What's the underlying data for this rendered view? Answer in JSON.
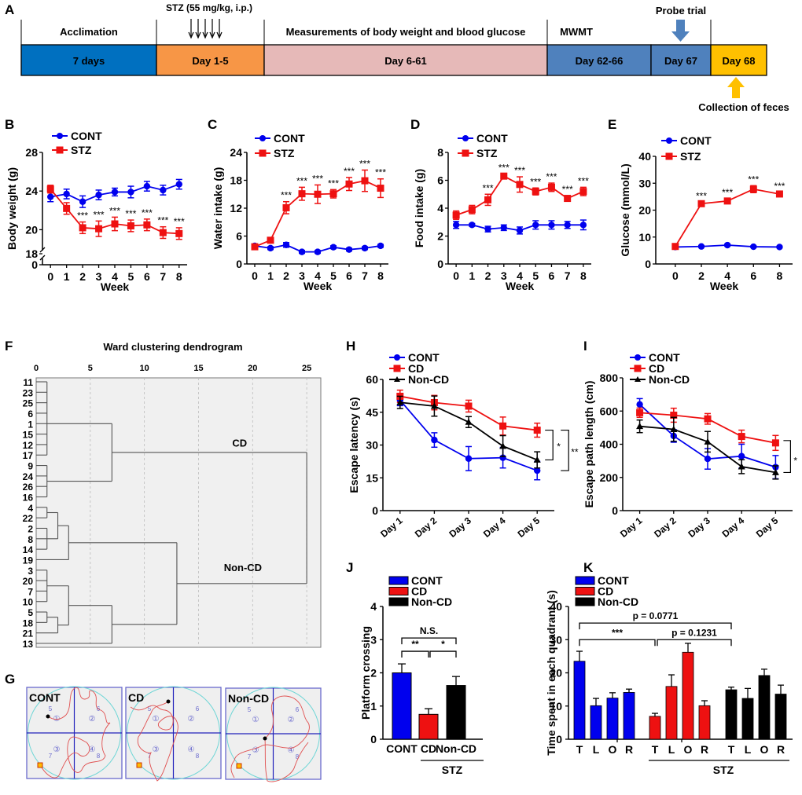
{
  "colors": {
    "cont": "#0000ee",
    "stz": "#ee1111",
    "noncd": "#000000",
    "timeline": {
      "acclimation": "#0070c0",
      "stz": "#f79646",
      "measure": "#e6b9b8",
      "mwmt": "#4f81bd",
      "probe": "#4f81bd",
      "feces": "#ffc000",
      "probe_arrow": "#4f81bd",
      "feces_arrow": "#ffc000"
    }
  },
  "panelA": {
    "letter": "A",
    "segments": [
      {
        "top_label": "Acclimation",
        "bar_label": "7 days"
      },
      {
        "top_label": "STZ (55 mg/kg, i.p.)",
        "bar_label": "Day 1-5"
      },
      {
        "top_label": "Measurements of body weight and blood glucose",
        "bar_label": "Day 6-61"
      },
      {
        "top_label": "MWMT",
        "bar_label": "Day 62-66"
      },
      {
        "top_label": "",
        "bar_label": "Day 67"
      },
      {
        "top_label": "",
        "bar_label": "Day 68"
      }
    ],
    "probe_label": "Probe trial",
    "feces_label": "Collection of feces",
    "stz_injection_arrows": 5
  },
  "panelG": {
    "letter": "G",
    "maps": [
      {
        "label": "CONT"
      },
      {
        "label": "CD"
      },
      {
        "label": "Non-CD"
      }
    ],
    "quadrant_marks": [
      "①",
      "②",
      "③",
      "④"
    ],
    "zone_numbers": [
      "5",
      "6",
      "7",
      "8"
    ]
  },
  "chart_data": [
    {
      "id": "B",
      "letter": "B",
      "type": "line",
      "xlabel": "Week",
      "ylabel": "Body weight (g)",
      "x": [
        0,
        1,
        2,
        3,
        4,
        5,
        6,
        7,
        8
      ],
      "yticks": [
        0,
        18,
        20,
        24,
        28
      ],
      "ylim_broken": {
        "lower": [
          0,
          18
        ],
        "upper": [
          18,
          28
        ]
      },
      "legend": [
        "CONT",
        "STZ"
      ],
      "series": [
        {
          "name": "CONT",
          "marker": "circle",
          "values": [
            23.4,
            23.7,
            22.9,
            23.6,
            23.9,
            23.9,
            24.5,
            24.1,
            24.7
          ],
          "err": [
            0.5,
            0.5,
            0.6,
            0.5,
            0.4,
            0.6,
            0.5,
            0.5,
            0.5
          ]
        },
        {
          "name": "STZ",
          "marker": "square",
          "values": [
            24.2,
            22.2,
            20.2,
            20.1,
            20.6,
            20.4,
            20.5,
            19.7,
            19.6
          ],
          "err": [
            0.4,
            0.6,
            0.6,
            0.8,
            0.7,
            0.6,
            0.6,
            0.6,
            0.6
          ]
        }
      ],
      "annotations": [
        {
          "x": 2,
          "text": "***"
        },
        {
          "x": 3,
          "text": "***"
        },
        {
          "x": 4,
          "text": "***"
        },
        {
          "x": 5,
          "text": "***"
        },
        {
          "x": 6,
          "text": "***"
        },
        {
          "x": 7,
          "text": "***"
        },
        {
          "x": 8,
          "text": "***"
        }
      ]
    },
    {
      "id": "C",
      "letter": "C",
      "type": "line",
      "xlabel": "Week",
      "ylabel": "Water intake (g)",
      "x": [
        0,
        1,
        2,
        3,
        4,
        5,
        6,
        7,
        8
      ],
      "yticks": [
        0,
        6,
        12,
        18,
        24
      ],
      "ylim": [
        0,
        24
      ],
      "legend": [
        "CONT",
        "STZ"
      ],
      "series": [
        {
          "name": "CONT",
          "marker": "circle",
          "values": [
            3.9,
            3.4,
            4.1,
            2.6,
            2.6,
            3.6,
            3.1,
            3.4,
            3.9
          ],
          "err": [
            0.3,
            0.3,
            0.5,
            0.3,
            0.3,
            0.3,
            0.3,
            0.3,
            0.3
          ]
        },
        {
          "name": "STZ",
          "marker": "square",
          "values": [
            3.7,
            5.1,
            12.1,
            15.1,
            15.0,
            15.1,
            17.2,
            17.9,
            16.3
          ],
          "err": [
            0.3,
            0.4,
            1.3,
            1.4,
            2.0,
            0.9,
            1.4,
            2.3,
            2.0
          ]
        }
      ],
      "annotations": [
        {
          "x": 2,
          "text": "***"
        },
        {
          "x": 3,
          "text": "***"
        },
        {
          "x": 4,
          "text": "***"
        },
        {
          "x": 5,
          "text": "***"
        },
        {
          "x": 6,
          "text": "***"
        },
        {
          "x": 7,
          "text": "***"
        },
        {
          "x": 8,
          "text": "***"
        }
      ]
    },
    {
      "id": "D",
      "letter": "D",
      "type": "line",
      "xlabel": "Week",
      "ylabel": "Food intake (g)",
      "x": [
        0,
        1,
        2,
        3,
        4,
        5,
        6,
        7,
        8
      ],
      "yticks": [
        0,
        2,
        4,
        6,
        8
      ],
      "ylim": [
        0,
        8
      ],
      "legend": [
        "CONT",
        "STZ"
      ],
      "series": [
        {
          "name": "CONT",
          "marker": "circle",
          "values": [
            2.8,
            2.8,
            2.5,
            2.6,
            2.4,
            2.8,
            2.8,
            2.8,
            2.8
          ],
          "err": [
            0.25,
            0.1,
            0.2,
            0.2,
            0.25,
            0.3,
            0.3,
            0.25,
            0.35
          ]
        },
        {
          "name": "STZ",
          "marker": "square",
          "values": [
            3.5,
            3.9,
            4.6,
            6.3,
            5.7,
            5.2,
            5.5,
            4.7,
            5.2
          ],
          "err": [
            0.3,
            0.3,
            0.4,
            0.15,
            0.55,
            0.25,
            0.3,
            0.2,
            0.3
          ]
        }
      ],
      "annotations": [
        {
          "x": 2,
          "text": "***"
        },
        {
          "x": 3,
          "text": "***"
        },
        {
          "x": 4,
          "text": "***"
        },
        {
          "x": 5,
          "text": "***"
        },
        {
          "x": 6,
          "text": "***"
        },
        {
          "x": 7,
          "text": "***"
        },
        {
          "x": 8,
          "text": "***"
        }
      ]
    },
    {
      "id": "E",
      "letter": "E",
      "type": "line",
      "xlabel": "Week",
      "ylabel": "Glucose (mmol/L)",
      "x": [
        0,
        2,
        4,
        6,
        8
      ],
      "xlim": [
        -1.5,
        9
      ],
      "yticks": [
        0,
        10,
        20,
        30,
        40
      ],
      "ylim": [
        0,
        40
      ],
      "legend": [
        "CONT",
        "STZ"
      ],
      "series": [
        {
          "name": "CONT",
          "marker": "circle",
          "values": [
            6.3,
            6.5,
            7.0,
            6.4,
            6.3
          ],
          "err": [
            0.3,
            0.3,
            0.4,
            0.3,
            0.3
          ]
        },
        {
          "name": "STZ",
          "marker": "square",
          "values": [
            6.5,
            22.4,
            23.4,
            27.8,
            26.0
          ],
          "err": [
            0.4,
            0.5,
            0.9,
            1.3,
            0.6
          ]
        }
      ],
      "annotations": [
        {
          "x": 2,
          "text": "***"
        },
        {
          "x": 4,
          "text": "***"
        },
        {
          "x": 6,
          "text": "***"
        },
        {
          "x": 8,
          "text": "***"
        }
      ]
    },
    {
      "id": "F",
      "letter": "F",
      "type": "dendrogram",
      "title": "Ward clustering dendrogram",
      "xticks": [
        0,
        5,
        10,
        15,
        20,
        25
      ],
      "xlim": [
        0,
        26.3
      ],
      "leaves": [
        "11",
        "23",
        "25",
        "6",
        "1",
        "15",
        "12",
        "17",
        "9",
        "24",
        "26",
        "16",
        "4",
        "22",
        "2",
        "8",
        "14",
        "19",
        "3",
        "20",
        "7",
        "10",
        "5",
        "18",
        "21",
        "13"
      ],
      "cluster_labels": [
        {
          "text": "CD",
          "x": 18.8,
          "leaf_pos": 6.2
        },
        {
          "text": "Non-CD",
          "x": 19.1,
          "leaf_pos": 18.1
        }
      ],
      "merges": [
        {
          "a": "L0-7",
          "lo": 0,
          "hi": 7,
          "h": 1,
          "id": "m1"
        },
        {
          "a": "L8-11",
          "lo": 8,
          "hi": 11,
          "h": 1,
          "id": "m2"
        },
        {
          "children": [
            "m1",
            "m2"
          ],
          "h": 7,
          "id": "m3"
        },
        {
          "a": "L12-13",
          "lo": 12,
          "hi": 13,
          "h": 1,
          "id": "m4"
        },
        {
          "a": "L14-16",
          "lo": 14,
          "hi": 16,
          "h": 1,
          "id": "m5"
        },
        {
          "children": [
            "m4",
            "m5"
          ],
          "h": 2,
          "id": "m6"
        },
        {
          "children": [
            "m6",
            "L17"
          ],
          "h": 3,
          "id": "m7"
        },
        {
          "a": "L18-21",
          "lo": 18,
          "hi": 21,
          "h": 1,
          "id": "m8"
        },
        {
          "a": "L22-23",
          "lo": 22,
          "hi": 23,
          "h": 1,
          "id": "m9"
        },
        {
          "children": [
            "m9",
            "L24"
          ],
          "h": 2,
          "id": "m10"
        },
        {
          "children": [
            "m8",
            "m10"
          ],
          "h": 3,
          "id": "m11"
        },
        {
          "children": [
            "m11",
            "L25"
          ],
          "h": 7,
          "id": "m12"
        },
        {
          "children": [
            "m7",
            "m12"
          ],
          "h": 13,
          "id": "m13"
        },
        {
          "children": [
            "m3",
            "m13"
          ],
          "h": 25,
          "id": "m14"
        }
      ]
    },
    {
      "id": "H",
      "letter": "H",
      "type": "line",
      "xlabel": "",
      "ylabel": "Escape latency (s)",
      "categories": [
        "Day 1",
        "Day 2",
        "Day 3",
        "Day 4",
        "Day 5"
      ],
      "yticks": [
        0,
        15,
        30,
        45,
        60
      ],
      "ylim": [
        0,
        60
      ],
      "legend": [
        "CONT",
        "CD",
        "Non-CD"
      ],
      "series": [
        {
          "name": "CONT",
          "marker": "circle",
          "values": [
            50.5,
            32.3,
            23.8,
            24.2,
            18.3
          ],
          "err": [
            2.5,
            3.3,
            5.5,
            4.7,
            4.2
          ]
        },
        {
          "name": "CD",
          "marker": "square",
          "values": [
            52.3,
            49.4,
            47.8,
            38.7,
            36.8
          ],
          "err": [
            2.8,
            3.3,
            2.7,
            4.1,
            3.2
          ]
        },
        {
          "name": "Non-CD",
          "marker": "triangle",
          "values": [
            49.5,
            47.8,
            40.5,
            29.5,
            23.2
          ],
          "err": [
            2.8,
            4.6,
            2.5,
            4.8,
            3.7
          ]
        }
      ],
      "brackets": [
        {
          "from": "CD",
          "to": "Non-CD",
          "text": "*"
        },
        {
          "from": "CD",
          "to": "CONT",
          "text": "**"
        }
      ]
    },
    {
      "id": "I",
      "letter": "I",
      "type": "line",
      "xlabel": "",
      "ylabel": "Escape path length (cm)",
      "categories": [
        "Day 1",
        "Day 2",
        "Day 3",
        "Day 4",
        "Day 5"
      ],
      "yticks": [
        0,
        200,
        400,
        600,
        800
      ],
      "ylim": [
        0,
        800
      ],
      "legend": [
        "CONT",
        "CD",
        "Non-CD"
      ],
      "series": [
        {
          "name": "CONT",
          "marker": "circle",
          "values": [
            640,
            450,
            312,
            328,
            262
          ],
          "err": [
            35,
            38,
            62,
            72,
            70
          ]
        },
        {
          "name": "CD",
          "marker": "square",
          "values": [
            590,
            575,
            553,
            447,
            408
          ],
          "err": [
            28,
            42,
            32,
            38,
            45
          ]
        },
        {
          "name": "Non-CD",
          "marker": "triangle",
          "values": [
            508,
            490,
            415,
            265,
            230
          ],
          "err": [
            38,
            72,
            62,
            42,
            40
          ]
        }
      ],
      "brackets": [
        {
          "from": "CD",
          "to": "Non-CD",
          "text": "*"
        }
      ]
    },
    {
      "id": "J",
      "letter": "J",
      "type": "bar",
      "ylabel": "Platform crossing",
      "categories": [
        "CONT",
        "CD",
        "Non-CD"
      ],
      "group_label": "STZ",
      "yticks": [
        0,
        1,
        2,
        3,
        4
      ],
      "ylim": [
        0,
        4
      ],
      "legend": [
        "CONT",
        "CD",
        "Non-CD"
      ],
      "values": [
        2.0,
        0.75,
        1.62
      ],
      "err": [
        0.27,
        0.17,
        0.27
      ],
      "brackets": [
        {
          "from": 0,
          "to": 1,
          "text": "**",
          "level": 2.65
        },
        {
          "from": 1,
          "to": 2,
          "text": "*",
          "level": 2.65
        },
        {
          "from": 0,
          "to": 2,
          "text": "N.S.",
          "level": 3.05
        }
      ]
    },
    {
      "id": "K",
      "letter": "K",
      "type": "bar",
      "ylabel": "Time spent in each quadrant (s)",
      "categories": [
        "T",
        "L",
        "O",
        "R",
        "T",
        "L",
        "O",
        "R",
        "T",
        "L",
        "O",
        "R"
      ],
      "group_label": "STZ",
      "yticks": [
        0,
        10,
        20,
        30,
        40
      ],
      "ylim": [
        0,
        40
      ],
      "legend": [
        "CONT",
        "CD",
        "Non-CD"
      ],
      "series": [
        {
          "name": "CONT",
          "values": [
            23.5,
            10.1,
            12.4,
            14.1
          ],
          "err": [
            3.0,
            2.2,
            1.6,
            1.0
          ]
        },
        {
          "name": "CD",
          "values": [
            6.9,
            15.9,
            26.2,
            10.1
          ],
          "err": [
            0.9,
            3.5,
            2.7,
            1.5
          ]
        },
        {
          "name": "Non-CD",
          "values": [
            14.9,
            12.3,
            19.2,
            13.6
          ],
          "err": [
            0.8,
            3.0,
            1.9,
            2.7
          ]
        }
      ],
      "brackets": [
        {
          "text": "***",
          "level": 30
        },
        {
          "text": "p = 0.1231",
          "level": 30
        },
        {
          "text": "p = 0.0771",
          "level": 35
        }
      ]
    }
  ]
}
